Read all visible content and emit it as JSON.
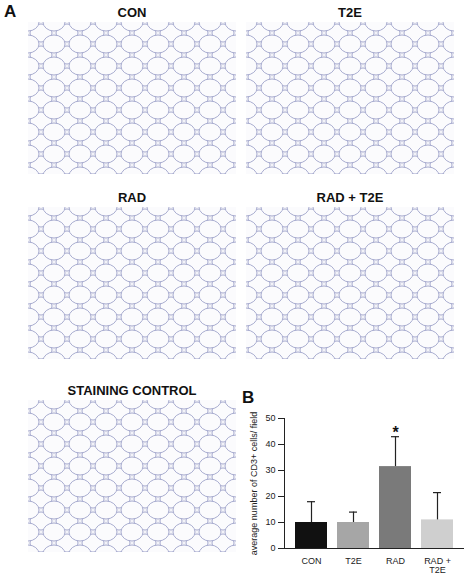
{
  "panels": {
    "labels": [
      "A",
      "B"
    ],
    "images": [
      "CON",
      "T2E",
      "RAD",
      "RAD + T2E",
      "STAINING CONTROL"
    ]
  },
  "chart_data": {
    "type": "bar",
    "categories": [
      "CON",
      "T2E",
      "RAD",
      "RAD + T2E"
    ],
    "values": [
      10,
      10,
      31.5,
      11
    ],
    "errors": [
      8,
      4,
      11.5,
      10.5
    ],
    "colors": [
      "#111111",
      "#a6a6a6",
      "#7a7a7a",
      "#cfcfcf"
    ],
    "y_label": "average number of CD3+ cells/ field",
    "ylim": [
      0,
      50
    ],
    "yticks": [
      0,
      10,
      20,
      30,
      40,
      50
    ],
    "annotations": [
      {
        "text": "*",
        "category": "RAD"
      }
    ]
  }
}
